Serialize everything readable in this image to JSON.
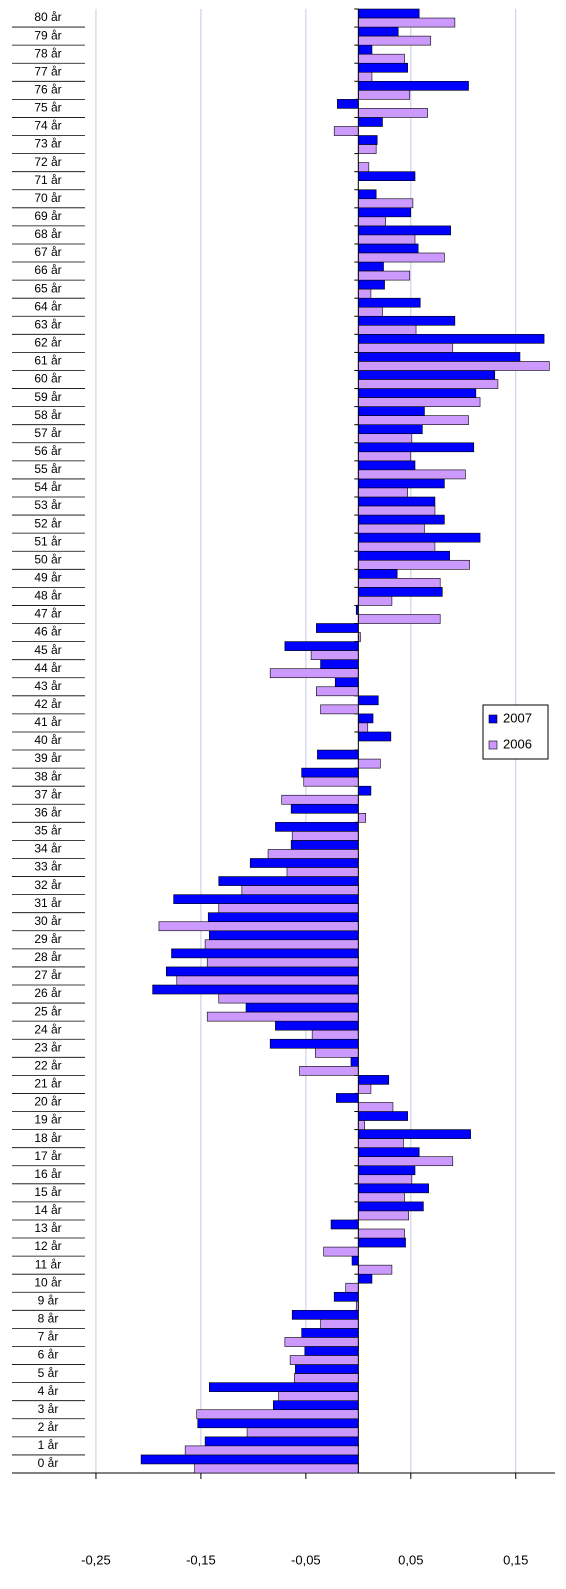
{
  "chart_data": {
    "type": "hbar",
    "categories": [
      "0 år",
      "1 år",
      "2 år",
      "3 år",
      "4 år",
      "5 år",
      "6 år",
      "7 år",
      "8 år",
      "9 år",
      "10 år",
      "11 år",
      "12 år",
      "13 år",
      "14 år",
      "15 år",
      "16 år",
      "17 år",
      "18 år",
      "19 år",
      "20 år",
      "21 år",
      "22 år",
      "23 år",
      "24 år",
      "25 år",
      "26 år",
      "27 år",
      "28 år",
      "29 år",
      "30 år",
      "31 år",
      "32 år",
      "33 år",
      "34 år",
      "35 år",
      "36 år",
      "37 år",
      "38 år",
      "39 år",
      "40 år",
      "41 år",
      "42 år",
      "43 år",
      "44 år",
      "45 år",
      "46 år",
      "47 år",
      "48 år",
      "49 år",
      "50 år",
      "51 år",
      "52 år",
      "53 år",
      "54 år",
      "55 år",
      "56 år",
      "57 år",
      "58 år",
      "59 år",
      "60 år",
      "61 år",
      "62 år",
      "63 år",
      "64 år",
      "65 år",
      "66 år",
      "67 år",
      "68 år",
      "69 år",
      "70 år",
      "71 år",
      "72 år",
      "73 år",
      "74 år",
      "75 år",
      "76 år",
      "77 år",
      "78 år",
      "79 år",
      "80 år"
    ],
    "series": [
      {
        "name": "2007",
        "color": "#0000ff",
        "values": [
          -0.207,
          -0.146,
          -0.153,
          -0.081,
          -0.142,
          -0.06,
          -0.051,
          -0.054,
          -0.063,
          -0.023,
          0.013,
          -0.006,
          0.045,
          -0.026,
          0.062,
          0.067,
          0.054,
          0.058,
          0.107,
          0.047,
          -0.021,
          0.029,
          -0.007,
          -0.084,
          -0.079,
          -0.107,
          -0.196,
          -0.183,
          -0.178,
          -0.142,
          -0.143,
          -0.176,
          -0.133,
          -0.103,
          -0.064,
          -0.079,
          -0.064,
          0.012,
          -0.054,
          -0.039,
          0.031,
          0.014,
          0.019,
          -0.022,
          -0.036,
          -0.07,
          -0.04,
          -0.002,
          0.08,
          0.037,
          0.087,
          0.116,
          0.082,
          0.073,
          0.082,
          0.054,
          0.11,
          0.061,
          0.063,
          0.112,
          0.13,
          0.154,
          0.177,
          0.092,
          0.059,
          0.025,
          0.024,
          0.057,
          0.088,
          0.05,
          0.017,
          0.054,
          0,
          0.018,
          0.023,
          -0.02,
          0.105,
          0.047,
          0.013,
          0.038,
          0.058
        ]
      },
      {
        "name": "2006",
        "color": "#cc99ff",
        "values": [
          -0.156,
          -0.165,
          -0.106,
          -0.154,
          -0.076,
          -0.061,
          -0.065,
          -0.07,
          -0.036,
          -0.002,
          -0.012,
          0.032,
          -0.033,
          0.044,
          0.048,
          0.044,
          0.051,
          0.09,
          0.043,
          0.006,
          0.033,
          0.012,
          -0.056,
          -0.041,
          -0.044,
          -0.144,
          -0.133,
          -0.173,
          -0.144,
          -0.146,
          -0.19,
          -0.133,
          -0.111,
          -0.068,
          -0.086,
          -0.063,
          0.007,
          -0.073,
          -0.052,
          0.021,
          0,
          0.009,
          -0.036,
          -0.04,
          -0.084,
          -0.045,
          0.002,
          0.078,
          0.032,
          0.078,
          0.106,
          0.073,
          0.063,
          0.073,
          0.047,
          0.102,
          0.05,
          0.051,
          0.105,
          0.116,
          0.133,
          0.182,
          0.09,
          0.055,
          0.023,
          0.012,
          0.049,
          0.082,
          0.054,
          0.026,
          0.052,
          0,
          0.01,
          0.017,
          -0.023,
          0.066,
          0.049,
          0.013,
          0.044,
          0.069,
          0.092
        ]
      }
    ],
    "xlim": [
      -0.33,
      0.1874
    ],
    "xticks": [
      {
        "value": -0.25,
        "label": "-0,25"
      },
      {
        "value": -0.15,
        "label": "-0,15"
      },
      {
        "value": -0.05,
        "label": "-0,05"
      },
      {
        "value": 0.05,
        "label": "0,05"
      },
      {
        "value": 0.15,
        "label": "0,15"
      }
    ],
    "grid": true,
    "legend": "right"
  }
}
